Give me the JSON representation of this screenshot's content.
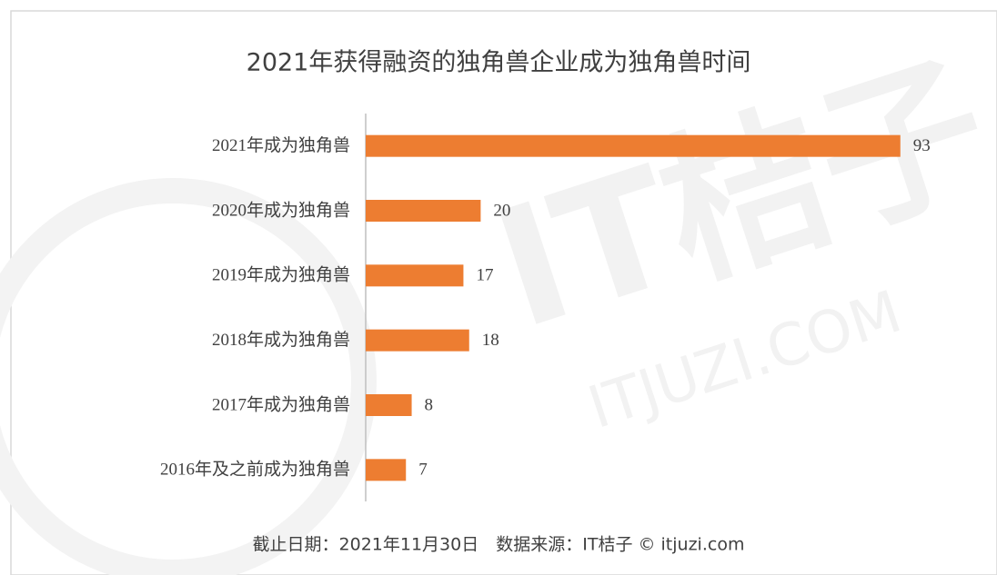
{
  "chart_data": {
    "type": "hbar",
    "title": "2021年获得融资的独角兽企业成为独角兽时间",
    "categories": [
      "2021年成为独角兽",
      "2020年成为独角兽",
      "2019年成为独角兽",
      "2018年成为独角兽",
      "2017年成为独角兽",
      "2016年及之前成为独角兽"
    ],
    "values": [
      93,
      20,
      17,
      18,
      8,
      7
    ],
    "color": "#ed7d31",
    "xlim": [
      0,
      100
    ],
    "note": "截止日期：2021年11月30日　数据来源：IT桔子 © itjuzi.com",
    "watermark": [
      "IT桔子",
      "ITJUZI.COM"
    ]
  }
}
